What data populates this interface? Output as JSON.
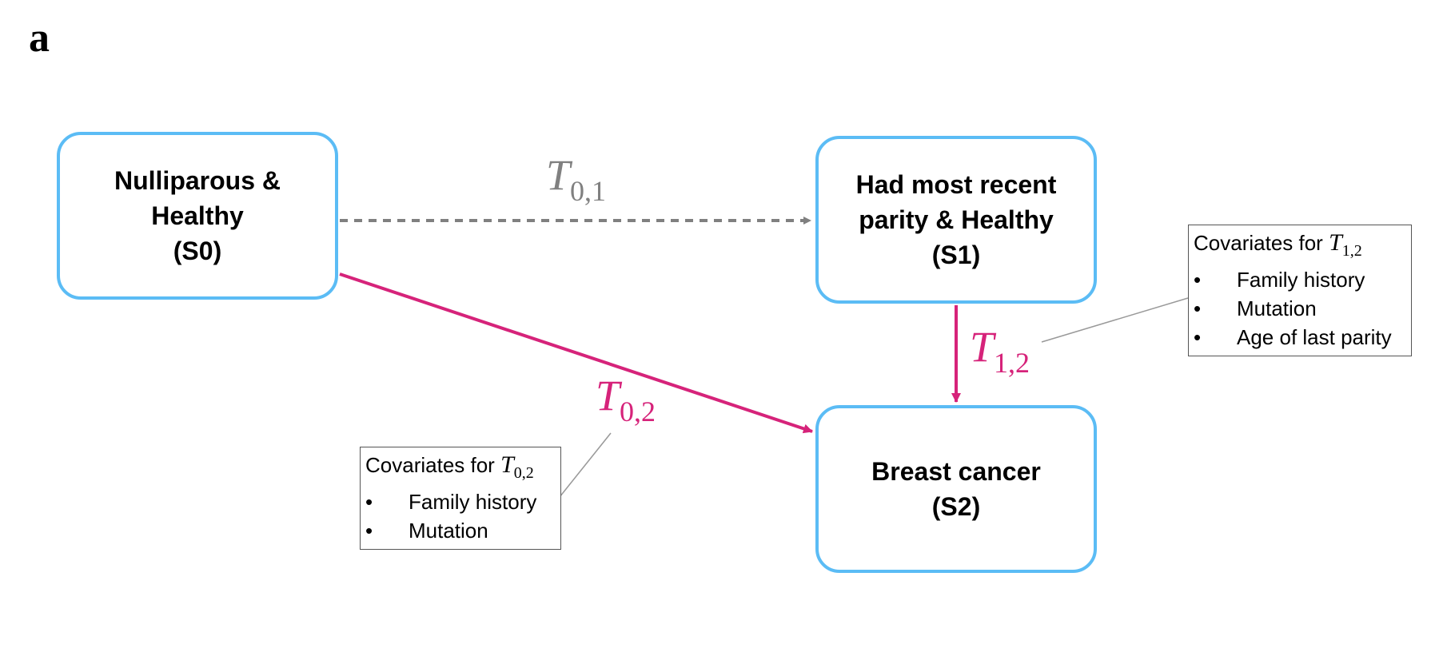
{
  "panel_label": "a",
  "colors": {
    "state_border": "#5bbcf5",
    "transition_active": "#d6237a",
    "transition_dashed": "#808080",
    "connector": "#999999"
  },
  "states": {
    "s0": {
      "line1": "Nulliparous &",
      "line2": "Healthy",
      "line3": "(S0)"
    },
    "s1": {
      "line1": "Had most recent",
      "line2": "parity & Healthy",
      "line3": "(S1)"
    },
    "s2": {
      "line1": "Breast cancer",
      "line2": "(S2)"
    }
  },
  "transitions": {
    "t01": {
      "symbol": "T",
      "subscript": "0,1",
      "style": "dashed"
    },
    "t02": {
      "symbol": "T",
      "subscript": "0,2",
      "style": "solid"
    },
    "t12": {
      "symbol": "T",
      "subscript": "1,2",
      "style": "solid"
    }
  },
  "covariates_t12": {
    "title_prefix": "Covariates for",
    "symbol": "T",
    "subscript": "1,2",
    "bullet": "•",
    "items": [
      "Family history",
      "Mutation",
      "Age of last parity"
    ]
  },
  "covariates_t02": {
    "title_prefix": "Covariates for",
    "symbol": "T",
    "subscript": "0,2",
    "bullet": "•",
    "items": [
      "Family history",
      "Mutation"
    ]
  }
}
